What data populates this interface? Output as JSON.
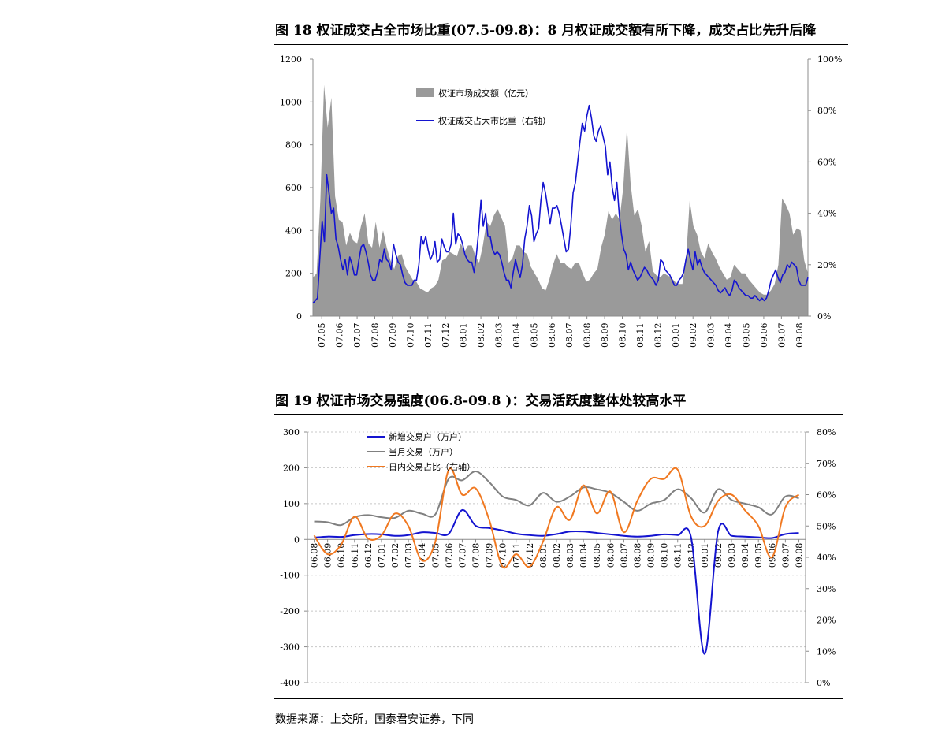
{
  "figure18": {
    "title": "图 18  权证成交占全市场比重(07.5-09.8)：8 月权证成交额有所下降，成交占比先升后降"
  },
  "figure19": {
    "title": "图 19  权证市场交易强度(06.8-09.8 )：交易活跃度整体处较高水平"
  },
  "source_note": "数据来源：上交所，国泰君安证券，下同",
  "colors": {
    "area": "#9a9a9a",
    "blue": "#1414d0",
    "grey_line": "#808080",
    "orange": "#f07820",
    "axis": "#8c8c8c"
  },
  "chart_data": [
    {
      "type": "area+line",
      "title": "",
      "y_left": {
        "range": [
          0,
          1200
        ],
        "ticks": [
          "0",
          "200",
          "400",
          "600",
          "800",
          "1000",
          "1200"
        ]
      },
      "y_right": {
        "range": [
          0,
          100
        ],
        "ticks": [
          "0%",
          "20%",
          "40%",
          "60%",
          "80%",
          "100%"
        ]
      },
      "x_ticks": [
        "07.05",
        "07.06",
        "07.07",
        "07.08",
        "07.09",
        "07.10",
        "07.11",
        "07.12",
        "08.01",
        "08.02",
        "08.03",
        "08.04",
        "08.05",
        "08.06",
        "08.07",
        "08.08",
        "08.09",
        "08.10",
        "08.11",
        "08.12",
        "09.01",
        "09.02",
        "09.03",
        "09.04",
        "09.05",
        "09.06",
        "09.07",
        "09.08"
      ],
      "legend_position": "top-left",
      "series": [
        {
          "name": "权证市场成交额（亿元）",
          "axis": "left",
          "kind": "area",
          "values": [
            180,
            200,
            540,
            1080,
            880,
            1020,
            560,
            450,
            440,
            330,
            390,
            350,
            340,
            420,
            480,
            340,
            320,
            440,
            320,
            400,
            320,
            260,
            220,
            280,
            290,
            230,
            200,
            170,
            160,
            130,
            120,
            110,
            130,
            140,
            170,
            260,
            270,
            300,
            290,
            280,
            340,
            300,
            330,
            330,
            280,
            250,
            330,
            440,
            420,
            470,
            500,
            460,
            420,
            250,
            270,
            330,
            330,
            300,
            290,
            230,
            200,
            170,
            130,
            120,
            170,
            240,
            290,
            250,
            250,
            230,
            220,
            250,
            250,
            200,
            160,
            170,
            200,
            220,
            320,
            380,
            490,
            450,
            480,
            450,
            600,
            880,
            620,
            470,
            500,
            420,
            300,
            350,
            210,
            190,
            180,
            200,
            190,
            180,
            160,
            150,
            150,
            260,
            540,
            420,
            380,
            300,
            270,
            340,
            300,
            270,
            230,
            200,
            170,
            180,
            240,
            220,
            200,
            200,
            170,
            150,
            130,
            110,
            100,
            100,
            120,
            150,
            240,
            550,
            520,
            480,
            380,
            410,
            400,
            260,
            200
          ]
        },
        {
          "name": "权证成交占大市比重（右轴）",
          "axis": "right",
          "kind": "line",
          "values": [
            5,
            6,
            7,
            23,
            37,
            29,
            55,
            48,
            40,
            42,
            30,
            27,
            22,
            18,
            22,
            16,
            23,
            20,
            16,
            16,
            22,
            27,
            28,
            25,
            21,
            16,
            14,
            14,
            17,
            22,
            21,
            26,
            22,
            21,
            18,
            28,
            24,
            21,
            20,
            16,
            13,
            12,
            12,
            12,
            14,
            14,
            20,
            31,
            28,
            31,
            26,
            22,
            24,
            29,
            21,
            22,
            30,
            27,
            25,
            25,
            28,
            40,
            28,
            32,
            31,
            28,
            24,
            22,
            21,
            21,
            17,
            24,
            33,
            45,
            35,
            40,
            31,
            31,
            26,
            24,
            25,
            24,
            21,
            17,
            14,
            14,
            11,
            17,
            22,
            18,
            15,
            20,
            30,
            35,
            43,
            39,
            29,
            32,
            34,
            45,
            52,
            48,
            42,
            36,
            42,
            42,
            43,
            40,
            35,
            30,
            25,
            26,
            35,
            48,
            52,
            60,
            68,
            75,
            72,
            78,
            82,
            77,
            70,
            68,
            72,
            74,
            70,
            66,
            55,
            60,
            50,
            45,
            52,
            40,
            32,
            26,
            24,
            18,
            21,
            18,
            16,
            14,
            15,
            17,
            19,
            18,
            16,
            15,
            14,
            12,
            14,
            22,
            21,
            18,
            17,
            16,
            14,
            12,
            12,
            14,
            15,
            17,
            22,
            26,
            22,
            18,
            25,
            20,
            22,
            19,
            17,
            16,
            15,
            14,
            13,
            12,
            10,
            9,
            10,
            11,
            9,
            8,
            10,
            14,
            13,
            11,
            10,
            9,
            8,
            8,
            7,
            7,
            8,
            7,
            6,
            7,
            6,
            7,
            10,
            14,
            16,
            18,
            15,
            13,
            16,
            17,
            20,
            19,
            21,
            20,
            19,
            14,
            12,
            12,
            12,
            15
          ]
        }
      ]
    },
    {
      "type": "line",
      "title": "",
      "y_left": {
        "range": [
          -400,
          300
        ],
        "ticks": [
          "-400",
          "-300",
          "-200",
          "-100",
          "0",
          "100",
          "200",
          "300"
        ]
      },
      "y_right": {
        "range": [
          0,
          80
        ],
        "ticks": [
          "0%",
          "10%",
          "20%",
          "30%",
          "40%",
          "50%",
          "60%",
          "70%",
          "80%"
        ]
      },
      "x_ticks": [
        "06.08",
        "06.09",
        "06.10",
        "06.11",
        "06.12",
        "07.01",
        "07.02",
        "07.03",
        "07.04",
        "07.05",
        "07.06",
        "07.07",
        "07.08",
        "07.09",
        "07.10",
        "07.11",
        "07.12",
        "08.01",
        "08.02",
        "08.03",
        "08.04",
        "08.05",
        "08.06",
        "08.07",
        "08.08",
        "08.09",
        "08.10",
        "08.11",
        "08.12",
        "09.01",
        "09.02",
        "09.03",
        "09.04",
        "09.05",
        "09.06",
        "09.07",
        "09.08"
      ],
      "legend_position": "top-left",
      "series": [
        {
          "name": "新增交易户（万户）",
          "axis": "left",
          "values": [
            5,
            8,
            7,
            12,
            15,
            14,
            10,
            12,
            20,
            18,
            16,
            82,
            38,
            32,
            25,
            16,
            12,
            10,
            15,
            22,
            22,
            18,
            14,
            10,
            8,
            10,
            14,
            12,
            5,
            -320,
            22,
            10,
            8,
            6,
            4,
            15,
            18
          ]
        },
        {
          "name": "当月交易（万户）",
          "axis": "left",
          "values": [
            50,
            48,
            40,
            62,
            68,
            62,
            60,
            80,
            72,
            70,
            170,
            165,
            190,
            160,
            120,
            110,
            95,
            130,
            105,
            120,
            145,
            140,
            130,
            105,
            80,
            100,
            110,
            140,
            115,
            75,
            140,
            110,
            100,
            90,
            70,
            120,
            115
          ]
        },
        {
          "name": "日内交易占比（右轴）",
          "axis": "right",
          "values": [
            47,
            41,
            44,
            53,
            46,
            47,
            54,
            50,
            39,
            45,
            68,
            60,
            62,
            52,
            37,
            41,
            37,
            45,
            56,
            52,
            63,
            54,
            61,
            48,
            58,
            65,
            65,
            68,
            53,
            50,
            58,
            60,
            55,
            50,
            40,
            56,
            60
          ]
        }
      ]
    }
  ]
}
